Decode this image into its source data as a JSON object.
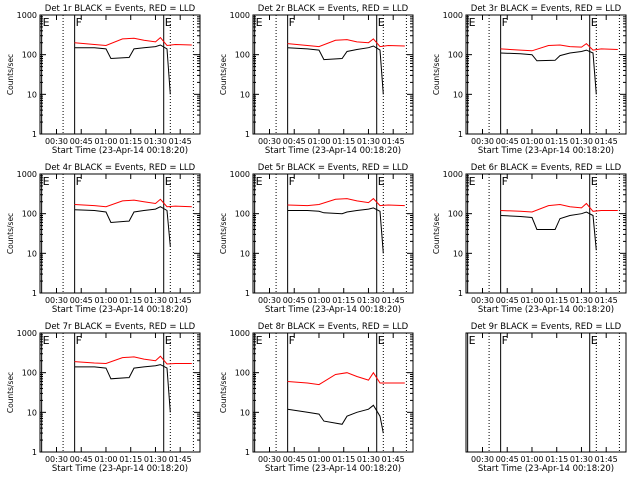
{
  "page_title": "",
  "chart_data": [
    {
      "type": "line",
      "title": "Det 1r BLACK = Events, RED = LLD",
      "xlabel": "Start Time (23-Apr-14 00:18:20)",
      "ylabel": "Counts/sec",
      "scale": "log",
      "xlim": [
        "00:20",
        "01:57"
      ],
      "ylim": [
        1,
        1000
      ],
      "x_ticks": [
        "00:30",
        "00:45",
        "01:00",
        "01:15",
        "01:30",
        "01:45"
      ],
      "y_ticks": [
        "1",
        "10",
        "100",
        "1000"
      ],
      "markers": [
        {
          "label": "E",
          "x": "00:21"
        },
        {
          "label": "F",
          "x": "00:41"
        },
        {
          "label": "E",
          "x": "01:35"
        }
      ],
      "dotted_lines": [
        "00:34",
        "01:39",
        "01:53"
      ],
      "series": [
        {
          "name": "BLACK = Events",
          "color": "#000000",
          "x": [
            "00:41",
            "00:53",
            "01:00",
            "01:03",
            "01:14",
            "01:17",
            "01:23",
            "01:30",
            "01:33",
            "01:37",
            "01:39"
          ],
          "values": [
            150,
            150,
            140,
            80,
            85,
            140,
            150,
            160,
            175,
            140,
            10
          ]
        },
        {
          "name": "RED = LLD",
          "color": "#ff0000",
          "x": [
            "00:41",
            "00:53",
            "01:00",
            "01:10",
            "01:17",
            "01:23",
            "01:30",
            "01:33",
            "01:37",
            "01:42",
            "01:52"
          ],
          "values": [
            200,
            180,
            170,
            250,
            260,
            230,
            210,
            270,
            170,
            180,
            175
          ]
        }
      ]
    },
    {
      "type": "line",
      "title": "Det 2r BLACK = Events, RED = LLD",
      "xlabel": "Start Time (23-Apr-14 00:18:20)",
      "ylabel": "Counts/sec",
      "scale": "log",
      "xlim": [
        "00:20",
        "01:57"
      ],
      "ylim": [
        1,
        1000
      ],
      "x_ticks": [
        "00:30",
        "00:45",
        "01:00",
        "01:15",
        "01:30",
        "01:45"
      ],
      "y_ticks": [
        "1",
        "10",
        "100",
        "1000"
      ],
      "markers": [
        {
          "label": "E",
          "x": "00:21"
        },
        {
          "label": "F",
          "x": "00:41"
        },
        {
          "label": "E",
          "x": "01:35"
        }
      ],
      "dotted_lines": [
        "00:34",
        "01:39",
        "01:53"
      ],
      "series": [
        {
          "name": "BLACK = Events",
          "color": "#000000",
          "x": [
            "00:41",
            "00:53",
            "01:00",
            "01:03",
            "01:14",
            "01:17",
            "01:23",
            "01:30",
            "01:33",
            "01:37",
            "01:39"
          ],
          "values": [
            150,
            140,
            130,
            75,
            80,
            120,
            135,
            150,
            165,
            130,
            10
          ]
        },
        {
          "name": "RED = LLD",
          "color": "#ff0000",
          "x": [
            "00:41",
            "00:53",
            "01:00",
            "01:10",
            "01:17",
            "01:23",
            "01:30",
            "01:33",
            "01:37",
            "01:42",
            "01:52"
          ],
          "values": [
            190,
            170,
            160,
            230,
            240,
            210,
            200,
            250,
            160,
            170,
            165
          ]
        }
      ]
    },
    {
      "type": "line",
      "title": "Det 3r BLACK = Events, RED = LLD",
      "xlabel": "Start Time (23-Apr-14 00:18:20)",
      "ylabel": "Counts/sec",
      "scale": "log",
      "xlim": [
        "00:20",
        "01:57"
      ],
      "ylim": [
        1,
        1000
      ],
      "x_ticks": [
        "00:30",
        "00:45",
        "01:00",
        "01:15",
        "01:30",
        "01:45"
      ],
      "y_ticks": [
        "1",
        "10",
        "100",
        "1000"
      ],
      "markers": [
        {
          "label": "E",
          "x": "00:21"
        },
        {
          "label": "F",
          "x": "00:41"
        },
        {
          "label": "E",
          "x": "01:35"
        }
      ],
      "dotted_lines": [
        "00:34",
        "01:39",
        "01:53"
      ],
      "series": [
        {
          "name": "BLACK = Events",
          "color": "#000000",
          "x": [
            "00:41",
            "00:53",
            "01:00",
            "01:03",
            "01:14",
            "01:17",
            "01:23",
            "01:30",
            "01:33",
            "01:37",
            "01:39"
          ],
          "values": [
            110,
            105,
            100,
            70,
            72,
            95,
            110,
            120,
            130,
            110,
            10
          ]
        },
        {
          "name": "RED = LLD",
          "color": "#ff0000",
          "x": [
            "00:41",
            "00:53",
            "01:00",
            "01:10",
            "01:17",
            "01:23",
            "01:30",
            "01:33",
            "01:37",
            "01:42",
            "01:52"
          ],
          "values": [
            140,
            130,
            125,
            170,
            175,
            160,
            155,
            190,
            130,
            140,
            135
          ]
        }
      ]
    },
    {
      "type": "line",
      "title": "Det 4r BLACK = Events, RED = LLD",
      "xlabel": "Start Time (23-Apr-14 00:18:20)",
      "ylabel": "Counts/sec",
      "scale": "log",
      "xlim": [
        "00:20",
        "01:57"
      ],
      "ylim": [
        1,
        1000
      ],
      "x_ticks": [
        "00:30",
        "00:45",
        "01:00",
        "01:15",
        "01:30",
        "01:45"
      ],
      "y_ticks": [
        "1",
        "10",
        "100",
        "1000"
      ],
      "markers": [
        {
          "label": "E",
          "x": "00:21"
        },
        {
          "label": "F",
          "x": "00:41"
        },
        {
          "label": "E",
          "x": "01:35"
        }
      ],
      "dotted_lines": [
        "00:34",
        "01:39",
        "01:53"
      ],
      "series": [
        {
          "name": "BLACK = Events",
          "color": "#000000",
          "x": [
            "00:41",
            "00:53",
            "01:00",
            "01:03",
            "01:14",
            "01:17",
            "01:23",
            "01:30",
            "01:33",
            "01:37",
            "01:39"
          ],
          "values": [
            125,
            120,
            110,
            60,
            65,
            110,
            120,
            130,
            150,
            120,
            15
          ]
        },
        {
          "name": "RED = LLD",
          "color": "#ff0000",
          "x": [
            "00:41",
            "00:53",
            "01:00",
            "01:10",
            "01:17",
            "01:23",
            "01:30",
            "01:33",
            "01:37",
            "01:42",
            "01:52"
          ],
          "values": [
            170,
            160,
            150,
            210,
            220,
            200,
            180,
            230,
            150,
            155,
            150
          ]
        }
      ]
    },
    {
      "type": "line",
      "title": "Det 5r BLACK = Events, RED = LLD",
      "xlabel": "Start Time (23-Apr-14 00:18:20)",
      "ylabel": "Counts/sec",
      "scale": "log",
      "xlim": [
        "00:20",
        "01:57"
      ],
      "ylim": [
        1,
        1000
      ],
      "x_ticks": [
        "00:30",
        "00:45",
        "01:00",
        "01:15",
        "01:30",
        "01:45"
      ],
      "y_ticks": [
        "1",
        "10",
        "100",
        "1000"
      ],
      "markers": [
        {
          "label": "E",
          "x": "00:21"
        },
        {
          "label": "F",
          "x": "00:41"
        },
        {
          "label": "E",
          "x": "01:35"
        }
      ],
      "dotted_lines": [
        "00:34",
        "01:39",
        "01:53"
      ],
      "series": [
        {
          "name": "BLACK = Events",
          "color": "#000000",
          "x": [
            "00:41",
            "00:53",
            "01:00",
            "01:03",
            "01:14",
            "01:17",
            "01:23",
            "01:30",
            "01:33",
            "01:37",
            "01:39"
          ],
          "values": [
            120,
            120,
            115,
            105,
            100,
            110,
            120,
            130,
            140,
            115,
            10
          ]
        },
        {
          "name": "RED = LLD",
          "color": "#ff0000",
          "x": [
            "00:41",
            "00:53",
            "01:00",
            "01:10",
            "01:17",
            "01:23",
            "01:30",
            "01:33",
            "01:37",
            "01:42",
            "01:52"
          ],
          "values": [
            165,
            160,
            170,
            230,
            240,
            210,
            190,
            240,
            160,
            165,
            160
          ]
        }
      ]
    },
    {
      "type": "line",
      "title": "Det 6r BLACK = Events, RED = LLD",
      "xlabel": "Start Time (23-Apr-14 00:18:20)",
      "ylabel": "Counts/sec",
      "scale": "log",
      "xlim": [
        "00:20",
        "01:57"
      ],
      "ylim": [
        1,
        1000
      ],
      "x_ticks": [
        "00:30",
        "00:45",
        "01:00",
        "01:15",
        "01:30",
        "01:45"
      ],
      "y_ticks": [
        "1",
        "10",
        "100",
        "1000"
      ],
      "markers": [
        {
          "label": "E",
          "x": "00:21"
        },
        {
          "label": "F",
          "x": "00:41"
        },
        {
          "label": "E",
          "x": "01:35"
        }
      ],
      "dotted_lines": [
        "00:34",
        "01:39",
        "01:53"
      ],
      "series": [
        {
          "name": "BLACK = Events",
          "color": "#000000",
          "x": [
            "00:41",
            "00:53",
            "01:00",
            "01:03",
            "01:14",
            "01:17",
            "01:23",
            "01:30",
            "01:33",
            "01:37",
            "01:39"
          ],
          "values": [
            90,
            85,
            80,
            40,
            40,
            75,
            90,
            100,
            110,
            90,
            12
          ]
        },
        {
          "name": "RED = LLD",
          "color": "#ff0000",
          "x": [
            "00:41",
            "00:53",
            "01:00",
            "01:10",
            "01:17",
            "01:23",
            "01:30",
            "01:33",
            "01:37",
            "01:42",
            "01:52"
          ],
          "values": [
            120,
            115,
            110,
            160,
            170,
            150,
            140,
            180,
            115,
            120,
            120
          ]
        }
      ]
    },
    {
      "type": "line",
      "title": "Det 7r BLACK = Events, RED = LLD",
      "xlabel": "Start Time (23-Apr-14 00:18:20)",
      "ylabel": "Counts/sec",
      "scale": "log",
      "xlim": [
        "00:20",
        "01:57"
      ],
      "ylim": [
        1,
        1000
      ],
      "x_ticks": [
        "00:30",
        "00:45",
        "01:00",
        "01:15",
        "01:30",
        "01:45"
      ],
      "y_ticks": [
        "1",
        "10",
        "100",
        "1000"
      ],
      "markers": [
        {
          "label": "E",
          "x": "00:21"
        },
        {
          "label": "F",
          "x": "00:41"
        },
        {
          "label": "E",
          "x": "01:35"
        }
      ],
      "dotted_lines": [
        "00:34",
        "01:39",
        "01:53"
      ],
      "series": [
        {
          "name": "BLACK = Events",
          "color": "#000000",
          "x": [
            "00:41",
            "00:53",
            "01:00",
            "01:03",
            "01:14",
            "01:17",
            "01:23",
            "01:30",
            "01:33",
            "01:37",
            "01:39"
          ],
          "values": [
            140,
            140,
            130,
            70,
            75,
            130,
            140,
            150,
            160,
            130,
            10
          ]
        },
        {
          "name": "RED = LLD",
          "color": "#ff0000",
          "x": [
            "00:41",
            "00:53",
            "01:00",
            "01:10",
            "01:17",
            "01:23",
            "01:30",
            "01:33",
            "01:37",
            "01:42",
            "01:52"
          ],
          "values": [
            190,
            175,
            170,
            240,
            250,
            220,
            200,
            260,
            165,
            170,
            170
          ]
        }
      ]
    },
    {
      "type": "line",
      "title": "Det 8r BLACK = Events, RED = LLD",
      "xlabel": "Start Time (23-Apr-14 00:18:20)",
      "ylabel": "Counts/sec",
      "scale": "log",
      "xlim": [
        "00:20",
        "01:57"
      ],
      "ylim": [
        1,
        1000
      ],
      "x_ticks": [
        "00:30",
        "00:45",
        "01:00",
        "01:15",
        "01:30",
        "01:45"
      ],
      "y_ticks": [
        "1",
        "10",
        "100",
        "1000"
      ],
      "markers": [
        {
          "label": "E",
          "x": "00:21"
        },
        {
          "label": "F",
          "x": "00:41"
        },
        {
          "label": "E",
          "x": "01:35"
        }
      ],
      "dotted_lines": [
        "00:34",
        "01:39",
        "01:53"
      ],
      "series": [
        {
          "name": "BLACK = Events",
          "color": "#000000",
          "x": [
            "00:41",
            "00:53",
            "01:00",
            "01:03",
            "01:14",
            "01:17",
            "01:23",
            "01:30",
            "01:33",
            "01:37",
            "01:39"
          ],
          "values": [
            12,
            10,
            9,
            6,
            5,
            8,
            10,
            12,
            15,
            8,
            3
          ]
        },
        {
          "name": "RED = LLD",
          "color": "#ff0000",
          "x": [
            "00:41",
            "00:53",
            "01:00",
            "01:10",
            "01:17",
            "01:23",
            "01:30",
            "01:33",
            "01:37",
            "01:42",
            "01:52"
          ],
          "values": [
            60,
            55,
            50,
            90,
            100,
            80,
            65,
            100,
            55,
            55,
            55
          ]
        }
      ]
    },
    {
      "type": "line",
      "title": "Det 9r BLACK = Events, RED = LLD",
      "xlabel": "Start Time (23-Apr-14 00:18:20)",
      "ylabel": "",
      "scale": "log",
      "xlim": [
        "00:20",
        "01:57"
      ],
      "ylim": [
        1,
        1000
      ],
      "x_ticks": [
        "00:30",
        "00:45",
        "01:00",
        "01:15",
        "01:30",
        "01:45"
      ],
      "y_ticks": [],
      "markers": [
        {
          "label": "E",
          "x": "00:21"
        },
        {
          "label": "F",
          "x": "00:41"
        },
        {
          "label": "E",
          "x": "01:35"
        }
      ],
      "dotted_lines": [
        "00:34",
        "01:39",
        "01:53"
      ],
      "series": []
    }
  ]
}
